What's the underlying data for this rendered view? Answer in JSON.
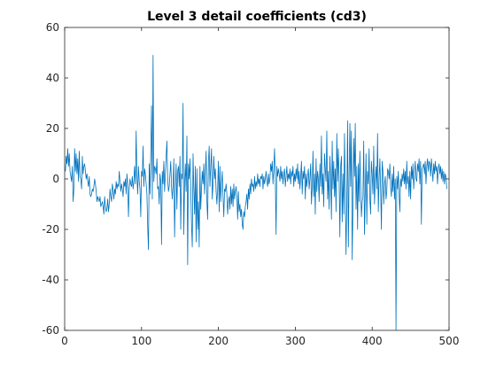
{
  "chart_data": {
    "type": "line",
    "title": "Level 3 detail coefficients (cd3)",
    "xlabel": "",
    "ylabel": "",
    "xlim": [
      0,
      500
    ],
    "ylim": [
      -60,
      60
    ],
    "xticks": [
      0,
      100,
      200,
      300,
      400,
      500
    ],
    "yticks": [
      -60,
      -40,
      -20,
      0,
      20,
      40,
      60
    ],
    "xtick_labels": [
      "0",
      "100",
      "200",
      "300",
      "400",
      "500"
    ],
    "ytick_labels": [
      "-60",
      "-40",
      "-20",
      "0",
      "20",
      "40",
      "60"
    ],
    "grid": false,
    "legend": "none",
    "series_color": "#0072BD",
    "series": [
      {
        "x_start": 1,
        "x_step": 1,
        "values": [
          3,
          9,
          6,
          12,
          5,
          10,
          3,
          1,
          -1,
          5,
          -9,
          -4,
          12,
          3,
          10,
          2,
          8,
          -1,
          11,
          1,
          0,
          -4,
          9,
          2,
          5,
          6,
          3,
          0,
          2,
          -1,
          -3,
          1,
          -6,
          -7,
          -6,
          -4,
          -5,
          -3,
          0,
          -2,
          -5,
          -9,
          -7,
          -8,
          -9,
          -7,
          -11,
          -10,
          -9,
          -11,
          -14,
          -7,
          -11,
          -13,
          -12,
          -8,
          -13,
          -10,
          -4,
          -7,
          -9,
          -2,
          -4,
          -8,
          -4,
          -6,
          -1,
          -4,
          -2,
          -3,
          3,
          -1,
          -5,
          -2,
          -4,
          -7,
          -1,
          -3,
          0,
          -6,
          2,
          -2,
          -15,
          -4,
          0,
          -2,
          -3,
          1,
          -4,
          -1,
          5,
          -2,
          19,
          1,
          -6,
          5,
          -1,
          -4,
          -15,
          3,
          1,
          13,
          -3,
          4,
          2,
          -2,
          -6,
          -19,
          -28,
          6,
          -6,
          10,
          29,
          -8,
          49,
          -1,
          5,
          4,
          2,
          8,
          -4,
          -3,
          -10,
          2,
          -1,
          -26,
          3,
          -2,
          7,
          -5,
          2,
          9,
          15,
          0,
          -5,
          -3,
          2,
          7,
          -3,
          -8,
          -2,
          8,
          -23,
          -4,
          6,
          -12,
          3,
          5,
          -3,
          9,
          -20,
          2,
          0,
          30,
          -22,
          -2,
          6,
          -5,
          17,
          -34,
          6,
          0,
          8,
          -3,
          -18,
          -27,
          10,
          -4,
          -14,
          5,
          -25,
          4,
          -20,
          -9,
          -27,
          5,
          -12,
          -4,
          3,
          -2,
          6,
          -6,
          2,
          11,
          -9,
          -16,
          7,
          13,
          -3,
          5,
          12,
          -8,
          -2,
          9,
          0,
          4,
          -5,
          -10,
          -4,
          7,
          -13,
          5,
          -9,
          -2,
          3,
          -7,
          -15,
          -4,
          -5,
          -2,
          -6,
          -14,
          -9,
          -7,
          -12,
          -3,
          -10,
          -4,
          -11,
          -2,
          -8,
          -5,
          -3,
          -7,
          -16,
          -5,
          -13,
          -10,
          -15,
          -12,
          -18,
          -20,
          -13,
          -15,
          -11,
          -9,
          -6,
          -12,
          -4,
          -8,
          -2,
          -6,
          0,
          -3,
          -2,
          -5,
          1,
          -4,
          -1,
          -3,
          2,
          -2,
          0,
          -3,
          1,
          0,
          2,
          -4,
          1,
          -2,
          0,
          3,
          -1,
          -3,
          2,
          -2,
          0,
          6,
          3,
          7,
          -2,
          4,
          12,
          0,
          -22,
          5,
          1,
          4,
          2,
          -1,
          5,
          0,
          3,
          -2,
          2,
          4,
          -3,
          1,
          5,
          -1,
          2,
          0,
          4,
          -2,
          3,
          1,
          5,
          -3,
          2,
          -1,
          4,
          0,
          6,
          -2,
          3,
          -4,
          1,
          7,
          -6,
          3,
          0,
          5,
          -8,
          2,
          -3,
          1,
          4,
          -4,
          0,
          6,
          -10,
          -3,
          11,
          -7,
          2,
          -14,
          8,
          -5,
          3,
          0,
          -9,
          6,
          -3,
          17,
          -6,
          2,
          -11,
          10,
          4,
          -1,
          19,
          -8,
          3,
          -12,
          9,
          0,
          -16,
          15,
          -4,
          7,
          -7,
          4,
          -13,
          18,
          -1,
          12,
          0,
          -23,
          5,
          9,
          -17,
          2,
          -14,
          18,
          -6,
          -30,
          -8,
          23,
          -27,
          2,
          22,
          -3,
          19,
          -32,
          -10,
          16,
          1,
          22,
          -12,
          5,
          -20,
          6,
          -9,
          11,
          -3,
          -15,
          -9,
          -7,
          15,
          -22,
          -5,
          10,
          -18,
          3,
          -2,
          12,
          -8,
          -14,
          7,
          2,
          -6,
          13,
          -10,
          -1,
          5,
          -4,
          18,
          -13,
          0,
          8,
          -4,
          -20,
          7,
          3,
          -10,
          -2,
          1,
          -8,
          -5,
          4,
          3,
          0,
          6,
          -3,
          -7,
          2,
          -5,
          5,
          -8,
          0,
          -60,
          1,
          -4,
          3,
          -6,
          -13,
          0,
          -3,
          2,
          -1,
          4,
          -2,
          3,
          -4,
          7,
          -2,
          1,
          -7,
          3,
          -8,
          5,
          0,
          6,
          -4,
          2,
          7,
          0,
          -1,
          6,
          3,
          8,
          -2,
          7,
          -18,
          4,
          5,
          6,
          2,
          7,
          -2,
          5,
          8,
          3,
          7,
          6,
          1,
          8,
          4,
          -1,
          6,
          2,
          7,
          3,
          5,
          -2,
          4,
          6,
          2,
          5,
          0,
          4,
          -1,
          3,
          -2,
          2,
          1,
          -4
        ]
      }
    ]
  }
}
